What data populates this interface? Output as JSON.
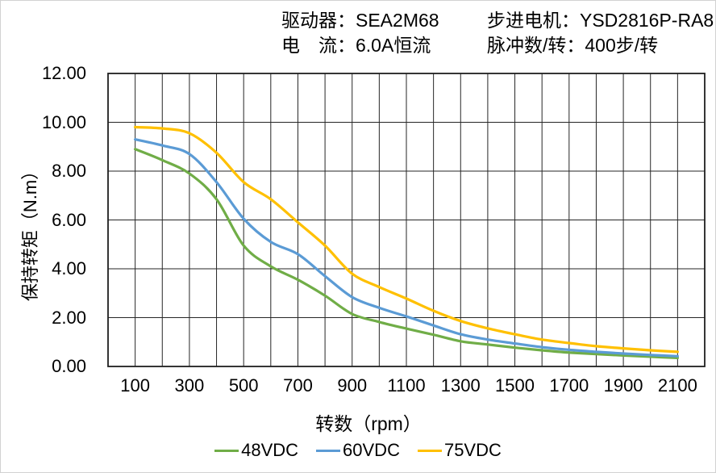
{
  "header": {
    "driver": "驱动器：SEA2M68",
    "motor": "步进电机：YSD2816P-RA8",
    "current": "电　流：6.0A恒流",
    "pulses": "脉冲数/转：400步/转"
  },
  "chart_data": {
    "type": "line",
    "xlabel": "转数（rpm）",
    "ylabel": "保持转矩（N.m）",
    "xlim": [
      0,
      2200
    ],
    "ylim": [
      0,
      12
    ],
    "x_gridline_step": 100,
    "y_gridline_step": 2,
    "grid": true,
    "legend_position": "bottom",
    "x_ticks": [
      100,
      300,
      500,
      700,
      900,
      1100,
      1300,
      1500,
      1700,
      1900,
      2100
    ],
    "y_ticks": [
      "12.00",
      "10.00",
      "8.00",
      "6.00",
      "4.00",
      "2.00",
      "0.00"
    ],
    "x": [
      100,
      200,
      300,
      400,
      500,
      600,
      700,
      800,
      900,
      1000,
      1100,
      1200,
      1300,
      1400,
      1500,
      1600,
      1700,
      1800,
      1900,
      2000,
      2100
    ],
    "series": [
      {
        "name": "48VDC",
        "color": "#70AD47",
        "values": [
          8.9,
          8.45,
          7.9,
          6.85,
          4.95,
          4.1,
          3.55,
          2.9,
          2.15,
          1.82,
          1.55,
          1.3,
          1.03,
          0.9,
          0.77,
          0.66,
          0.57,
          0.51,
          0.45,
          0.4,
          0.35
        ]
      },
      {
        "name": "60VDC",
        "color": "#5B9BD5",
        "values": [
          9.3,
          9.05,
          8.7,
          7.55,
          6.05,
          5.1,
          4.6,
          3.7,
          2.84,
          2.4,
          2.05,
          1.68,
          1.32,
          1.1,
          0.94,
          0.79,
          0.68,
          0.6,
          0.53,
          0.47,
          0.42
        ]
      },
      {
        "name": "75VDC",
        "color": "#FFC000",
        "values": [
          9.8,
          9.75,
          9.55,
          8.75,
          7.55,
          6.85,
          5.9,
          4.95,
          3.8,
          3.25,
          2.78,
          2.28,
          1.86,
          1.56,
          1.32,
          1.1,
          0.96,
          0.83,
          0.74,
          0.66,
          0.6
        ]
      }
    ]
  },
  "colors": {
    "grid": "#262626",
    "plot_border": "#1f1f1f",
    "text": "#000000",
    "page_border": "#d2d2d2",
    "background": "#ffffff"
  }
}
